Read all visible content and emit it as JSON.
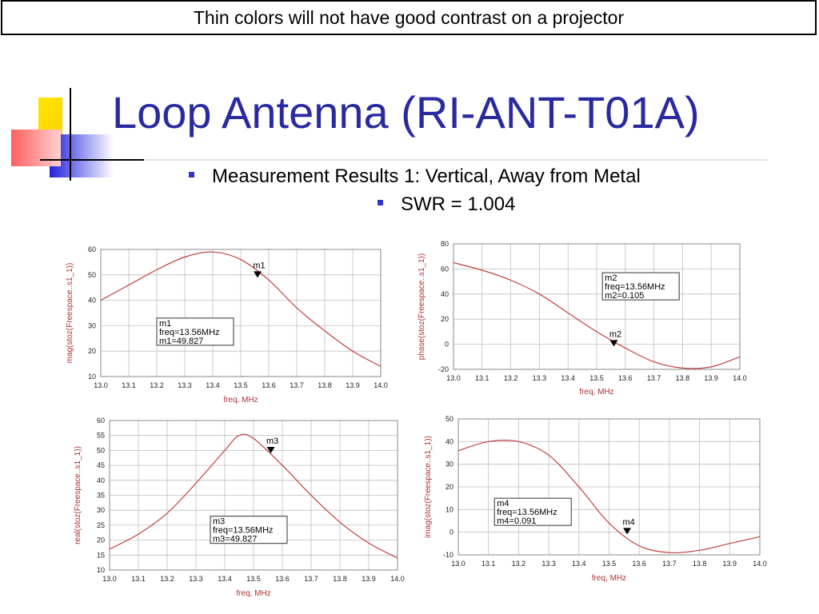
{
  "banner": "Thin colors will not have good contrast on a projector",
  "title": "Loop Antenna (RI-ANT-T01A)",
  "bullets": {
    "line1": "Measurement Results 1:  Vertical, Away from Metal",
    "line2": "SWR = 1.004"
  },
  "colors": {
    "title": "#2a2aa0",
    "curve": "#c04040",
    "grid": "#bfbfbf",
    "axis_label": "#b03030",
    "bullet": "#3333cc"
  },
  "chart_data": [
    {
      "type": "line",
      "xlabel": "freq, MHz",
      "ylabel": "mag(stoz(Freespace..s1_1))",
      "xlim": [
        13.0,
        14.0
      ],
      "ylim": [
        10,
        60
      ],
      "xticks": [
        "13.0",
        "13.1",
        "13.2",
        "13.3",
        "13.4",
        "13.5",
        "13.6",
        "13.7",
        "13.8",
        "13.9",
        "14.0"
      ],
      "yticks": [
        "10",
        "20",
        "30",
        "40",
        "50",
        "60"
      ],
      "grid": true,
      "x": [
        13.0,
        13.1,
        13.2,
        13.3,
        13.4,
        13.5,
        13.6,
        13.7,
        13.8,
        13.9,
        14.0
      ],
      "y": [
        40,
        46,
        52,
        57,
        59,
        56,
        48,
        37,
        28,
        20,
        14
      ],
      "marker": {
        "name": "m1",
        "x": 13.56,
        "y": 49.827,
        "lines": [
          "m1",
          "freq=13.56MHz",
          "m1=49.827"
        ],
        "box_corner": [
          13.2,
          33
        ]
      }
    },
    {
      "type": "line",
      "xlabel": "freq, MHz",
      "ylabel": "phase(stoz(Freespace..s1_1))",
      "xlim": [
        13.0,
        14.0
      ],
      "ylim": [
        -20,
        80
      ],
      "xticks": [
        "13.0",
        "13.1",
        "13.2",
        "13.3",
        "13.4",
        "13.5",
        "13.6",
        "13.7",
        "13.8",
        "13.9",
        "14.0"
      ],
      "yticks": [
        "-20",
        "0",
        "20",
        "40",
        "60",
        "80"
      ],
      "grid": true,
      "x": [
        13.0,
        13.1,
        13.2,
        13.3,
        13.4,
        13.5,
        13.6,
        13.7,
        13.8,
        13.9,
        14.0
      ],
      "y": [
        65,
        59,
        51,
        40,
        25,
        10,
        -3,
        -14,
        -19,
        -18,
        -10
      ],
      "marker": {
        "name": "m2",
        "x": 13.56,
        "y": 0.105,
        "lines": [
          "m2",
          "freq=13.56MHz",
          "m2=0.105"
        ],
        "box_corner": [
          13.52,
          57
        ]
      }
    },
    {
      "type": "line",
      "xlabel": "freq, MHz",
      "ylabel": "real(stoz(Freespace..s1_1))",
      "xlim": [
        13.0,
        14.0
      ],
      "ylim": [
        10,
        60
      ],
      "xticks": [
        "13.0",
        "13.1",
        "13.2",
        "13.3",
        "13.4",
        "13.5",
        "13.6",
        "13.7",
        "13.8",
        "13.9",
        "14.0"
      ],
      "yticks": [
        "10",
        "15",
        "20",
        "25",
        "30",
        "35",
        "40",
        "45",
        "50",
        "55",
        "60"
      ],
      "grid": true,
      "x": [
        13.0,
        13.1,
        13.2,
        13.3,
        13.4,
        13.45,
        13.5,
        13.6,
        13.7,
        13.8,
        13.9,
        14.0
      ],
      "y": [
        17,
        22,
        29,
        39,
        50,
        55,
        54,
        45,
        35,
        26,
        19,
        14
      ],
      "marker": {
        "name": "m3",
        "x": 13.56,
        "y": 49.827,
        "lines": [
          "m3",
          "freq=13.56MHz",
          "m3=49.827"
        ],
        "box_corner": [
          13.35,
          28
        ]
      }
    },
    {
      "type": "line",
      "xlabel": "freq, MHz",
      "ylabel": "imag(stoz(Freespace..s1_1))",
      "xlim": [
        13.0,
        14.0
      ],
      "ylim": [
        -10,
        50
      ],
      "xticks": [
        "13.0",
        "13.1",
        "13.2",
        "13.3",
        "13.4",
        "13.5",
        "13.6",
        "13.7",
        "13.8",
        "13.9",
        "14.0"
      ],
      "yticks": [
        "-10",
        "0",
        "10",
        "20",
        "30",
        "40",
        "50"
      ],
      "grid": true,
      "x": [
        13.0,
        13.1,
        13.2,
        13.3,
        13.4,
        13.5,
        13.6,
        13.7,
        13.8,
        13.9,
        14.0
      ],
      "y": [
        36,
        40,
        40,
        34,
        20,
        4,
        -6,
        -9,
        -8,
        -5,
        -2
      ],
      "marker": {
        "name": "m4",
        "x": 13.56,
        "y": 0.091,
        "lines": [
          "m4",
          "freq=13.56MHz",
          "m4=0.091"
        ],
        "box_corner": [
          13.12,
          15
        ]
      }
    }
  ]
}
